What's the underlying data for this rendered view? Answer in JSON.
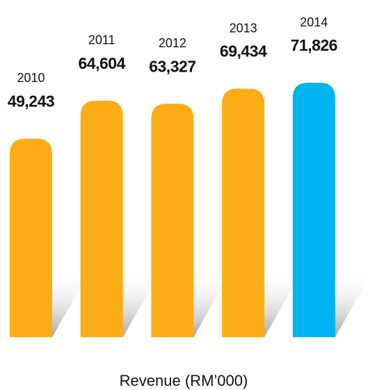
{
  "chart_data": {
    "type": "bar",
    "title": "Revenue (RM’000)",
    "categories": [
      "2010",
      "2011",
      "2012",
      "2013",
      "2014"
    ],
    "values": [
      49243,
      64604,
      63327,
      69434,
      71826
    ],
    "value_labels": [
      "49,243",
      "64,604",
      "63,327",
      "69,434",
      "71,826"
    ],
    "colors": [
      "#fbad18",
      "#fbad18",
      "#fbad18",
      "#fbad18",
      "#00b5ef"
    ]
  }
}
